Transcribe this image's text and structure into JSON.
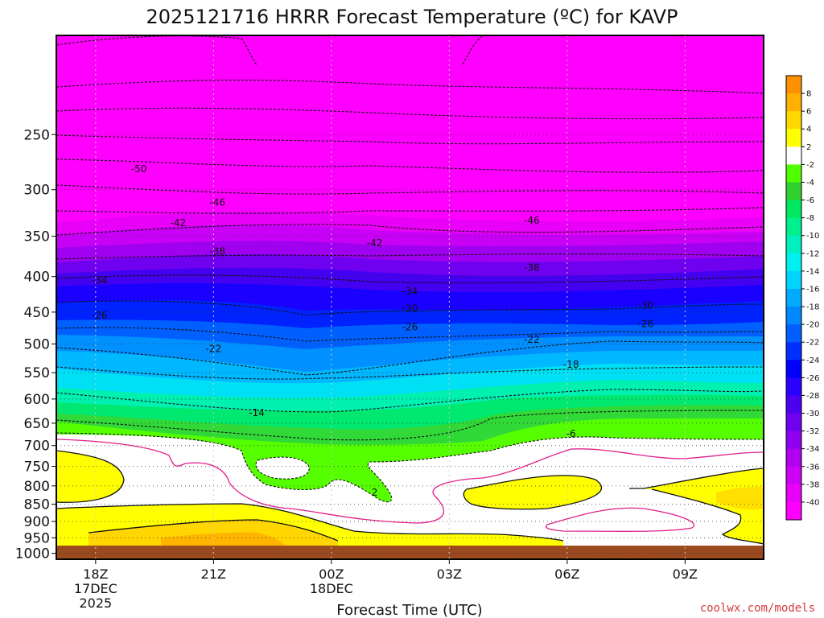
{
  "chart_data": {
    "type": "heatmap",
    "title": "2025121716 HRRR Forecast Temperature (ºC) for KAVP",
    "xlabel": "Forecast Time (UTC)",
    "ylabel": "",
    "credit": "coolwx.com/models",
    "x_ticks": [
      {
        "hour": 18,
        "lines": [
          "18Z",
          "17DEC",
          "2025"
        ]
      },
      {
        "hour": 21,
        "lines": [
          "21Z"
        ]
      },
      {
        "hour": 24,
        "lines": [
          "00Z",
          "18DEC"
        ]
      },
      {
        "hour": 27,
        "lines": [
          "03Z"
        ]
      },
      {
        "hour": 30,
        "lines": [
          "06Z"
        ]
      },
      {
        "hour": 33,
        "lines": [
          "09Z"
        ]
      }
    ],
    "xlim": [
      17,
      35
    ],
    "y_ticks": [
      250,
      300,
      350,
      400,
      450,
      500,
      550,
      600,
      650,
      700,
      750,
      800,
      850,
      900,
      950,
      1000
    ],
    "ylim": [
      1020,
      180
    ],
    "y_scale": "log",
    "colorbar": {
      "levels": [
        -40,
        -38,
        -36,
        -34,
        -32,
        -30,
        -28,
        -26,
        -24,
        -22,
        -20,
        -18,
        -16,
        -14,
        -12,
        -10,
        -8,
        -6,
        -4,
        -2,
        2,
        4,
        6,
        8
      ],
      "labels": [
        "-40",
        "-38",
        "-36",
        "-34",
        "-32",
        "-30",
        "-28",
        "-26",
        "-24",
        "-22",
        "-20",
        "-18",
        "-16",
        "-14",
        "-12",
        "-10",
        "-8",
        "-6",
        "-4",
        "-2",
        "2",
        "4",
        "6",
        "8"
      ],
      "colors": [
        "#ff00ff",
        "#e800f8",
        "#cc00f5",
        "#b000f0",
        "#9000f0",
        "#7000f0",
        "#4c00f0",
        "#2a00ff",
        "#0000ff",
        "#0030ff",
        "#0060ff",
        "#0088ff",
        "#00aaff",
        "#00d4ff",
        "#00f0f0",
        "#00f0c0",
        "#00f090",
        "#00e860",
        "#30d030",
        "#50ff00",
        "#ffffff",
        "#ffff00",
        "#ffd800",
        "#ffb000",
        "#ff9000"
      ]
    },
    "ground_color": "#9a4a1e",
    "contour_labels": [
      {
        "text": "-50",
        "hour": 19.1,
        "p": 280
      },
      {
        "text": "-46",
        "hour": 21.1,
        "p": 313
      },
      {
        "text": "-42",
        "hour": 20.1,
        "p": 335
      },
      {
        "text": "-38",
        "hour": 21.1,
        "p": 368
      },
      {
        "text": "-34",
        "hour": 18.1,
        "p": 405
      },
      {
        "text": "-26",
        "hour": 18.1,
        "p": 455
      },
      {
        "text": "-22",
        "hour": 21.0,
        "p": 508
      },
      {
        "text": "-14",
        "hour": 22.1,
        "p": 628
      },
      {
        "text": "-42",
        "hour": 25.1,
        "p": 358
      },
      {
        "text": "-34",
        "hour": 26.0,
        "p": 420
      },
      {
        "text": "-30",
        "hour": 26.0,
        "p": 445
      },
      {
        "text": "-26",
        "hour": 26.0,
        "p": 473
      },
      {
        "text": "-46",
        "hour": 29.1,
        "p": 332
      },
      {
        "text": "-38",
        "hour": 29.1,
        "p": 388
      },
      {
        "text": "-22",
        "hour": 29.1,
        "p": 493
      },
      {
        "text": "-18",
        "hour": 30.1,
        "p": 535
      },
      {
        "text": "-6",
        "hour": 30.1,
        "p": 673
      },
      {
        "text": "-30",
        "hour": 32.0,
        "p": 440
      },
      {
        "text": "-26",
        "hour": 32.0,
        "p": 468
      },
      {
        "text": "2",
        "hour": 25.1,
        "p": 818
      }
    ]
  }
}
